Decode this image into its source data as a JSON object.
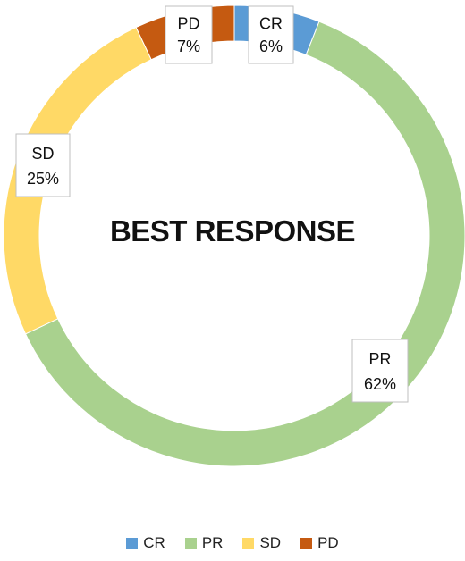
{
  "chart_data": {
    "type": "pie",
    "subtype": "donut",
    "title": "BEST RESPONSE",
    "categories": [
      "CR",
      "PR",
      "SD",
      "PD"
    ],
    "values": [
      6,
      62,
      25,
      7
    ],
    "value_labels": [
      "6%",
      "62%",
      "25%",
      "7%"
    ],
    "colors": [
      "#5b9bd5",
      "#a9d18e",
      "#ffd966",
      "#c55a11"
    ],
    "legend_position": "bottom"
  }
}
